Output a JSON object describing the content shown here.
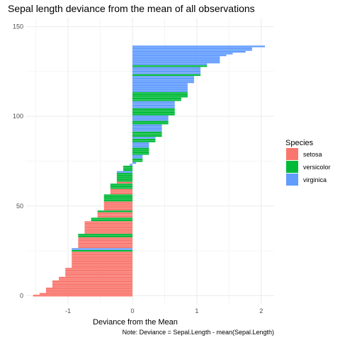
{
  "chart_data": {
    "type": "bar",
    "orientation": "horizontal",
    "title": "Sepal length deviance from the mean of all observations",
    "xlabel": "Deviance from the Mean",
    "ylabel": "",
    "caption": "Note: Deviance = Sepal.Length - mean(Sepal.Length)",
    "xlim": [
      -1.65,
      2.2
    ],
    "ylim": [
      -5,
      155
    ],
    "x_ticks": [
      -1,
      0,
      1,
      2
    ],
    "y_ticks": [
      0,
      50,
      100,
      150
    ],
    "grid": true,
    "legend": {
      "title": "Species",
      "position": "right",
      "entries": [
        {
          "name": "setosa",
          "color": "#F8766D"
        },
        {
          "name": "versicolor",
          "color": "#00BA38"
        },
        {
          "name": "virginica",
          "color": "#619CFF"
        }
      ]
    },
    "series": [
      {
        "name": "setosa",
        "counts": [
          {
            "value": -1.543,
            "n": 1
          },
          {
            "value": -1.443,
            "n": 1
          },
          {
            "value": -1.343,
            "n": 3
          },
          {
            "value": -1.243,
            "n": 4
          },
          {
            "value": -1.143,
            "n": 2
          },
          {
            "value": -1.043,
            "n": 5
          },
          {
            "value": -0.943,
            "n": 9
          },
          {
            "value": -0.843,
            "n": 6
          },
          {
            "value": -0.743,
            "n": 7
          },
          {
            "value": -0.543,
            "n": 3
          },
          {
            "value": -0.443,
            "n": 5
          },
          {
            "value": -0.343,
            "n": 3
          },
          {
            "value": -0.243,
            "n": 1
          }
        ]
      },
      {
        "name": "versicolor",
        "counts": [
          {
            "value": -0.943,
            "n": 1
          },
          {
            "value": -0.843,
            "n": 2
          },
          {
            "value": -0.643,
            "n": 2
          },
          {
            "value": -0.543,
            "n": 1
          },
          {
            "value": -0.443,
            "n": 4
          },
          {
            "value": -0.343,
            "n": 3
          },
          {
            "value": -0.243,
            "n": 5
          },
          {
            "value": -0.143,
            "n": 3
          },
          {
            "value": 0.157,
            "n": 2
          },
          {
            "value": 0.257,
            "n": 4
          },
          {
            "value": 0.357,
            "n": 2
          },
          {
            "value": 0.457,
            "n": 3
          },
          {
            "value": 0.557,
            "n": 2
          },
          {
            "value": 0.657,
            "n": 4
          },
          {
            "value": 0.757,
            "n": 2
          },
          {
            "value": 0.857,
            "n": 3
          },
          {
            "value": 1.057,
            "n": 1
          },
          {
            "value": 1.157,
            "n": 1
          }
        ]
      },
      {
        "name": "virginica",
        "counts": [
          {
            "value": -0.943,
            "n": 1
          },
          {
            "value": -0.243,
            "n": 1
          },
          {
            "value": -0.043,
            "n": 1
          },
          {
            "value": 0.057,
            "n": 1
          },
          {
            "value": 0.157,
            "n": 2
          },
          {
            "value": 0.257,
            "n": 3
          },
          {
            "value": 0.357,
            "n": 1
          },
          {
            "value": 0.457,
            "n": 4
          },
          {
            "value": 0.557,
            "n": 3
          },
          {
            "value": 0.657,
            "n": 4
          },
          {
            "value": 0.857,
            "n": 5
          },
          {
            "value": 0.957,
            "n": 4
          },
          {
            "value": 1.057,
            "n": 4
          },
          {
            "value": 1.157,
            "n": 1
          },
          {
            "value": 1.357,
            "n": 4
          },
          {
            "value": 1.457,
            "n": 1
          },
          {
            "value": 1.557,
            "n": 1
          },
          {
            "value": 1.757,
            "n": 1
          },
          {
            "value": 1.857,
            "n": 2
          },
          {
            "value": 2.057,
            "n": 1
          }
        ]
      }
    ]
  }
}
